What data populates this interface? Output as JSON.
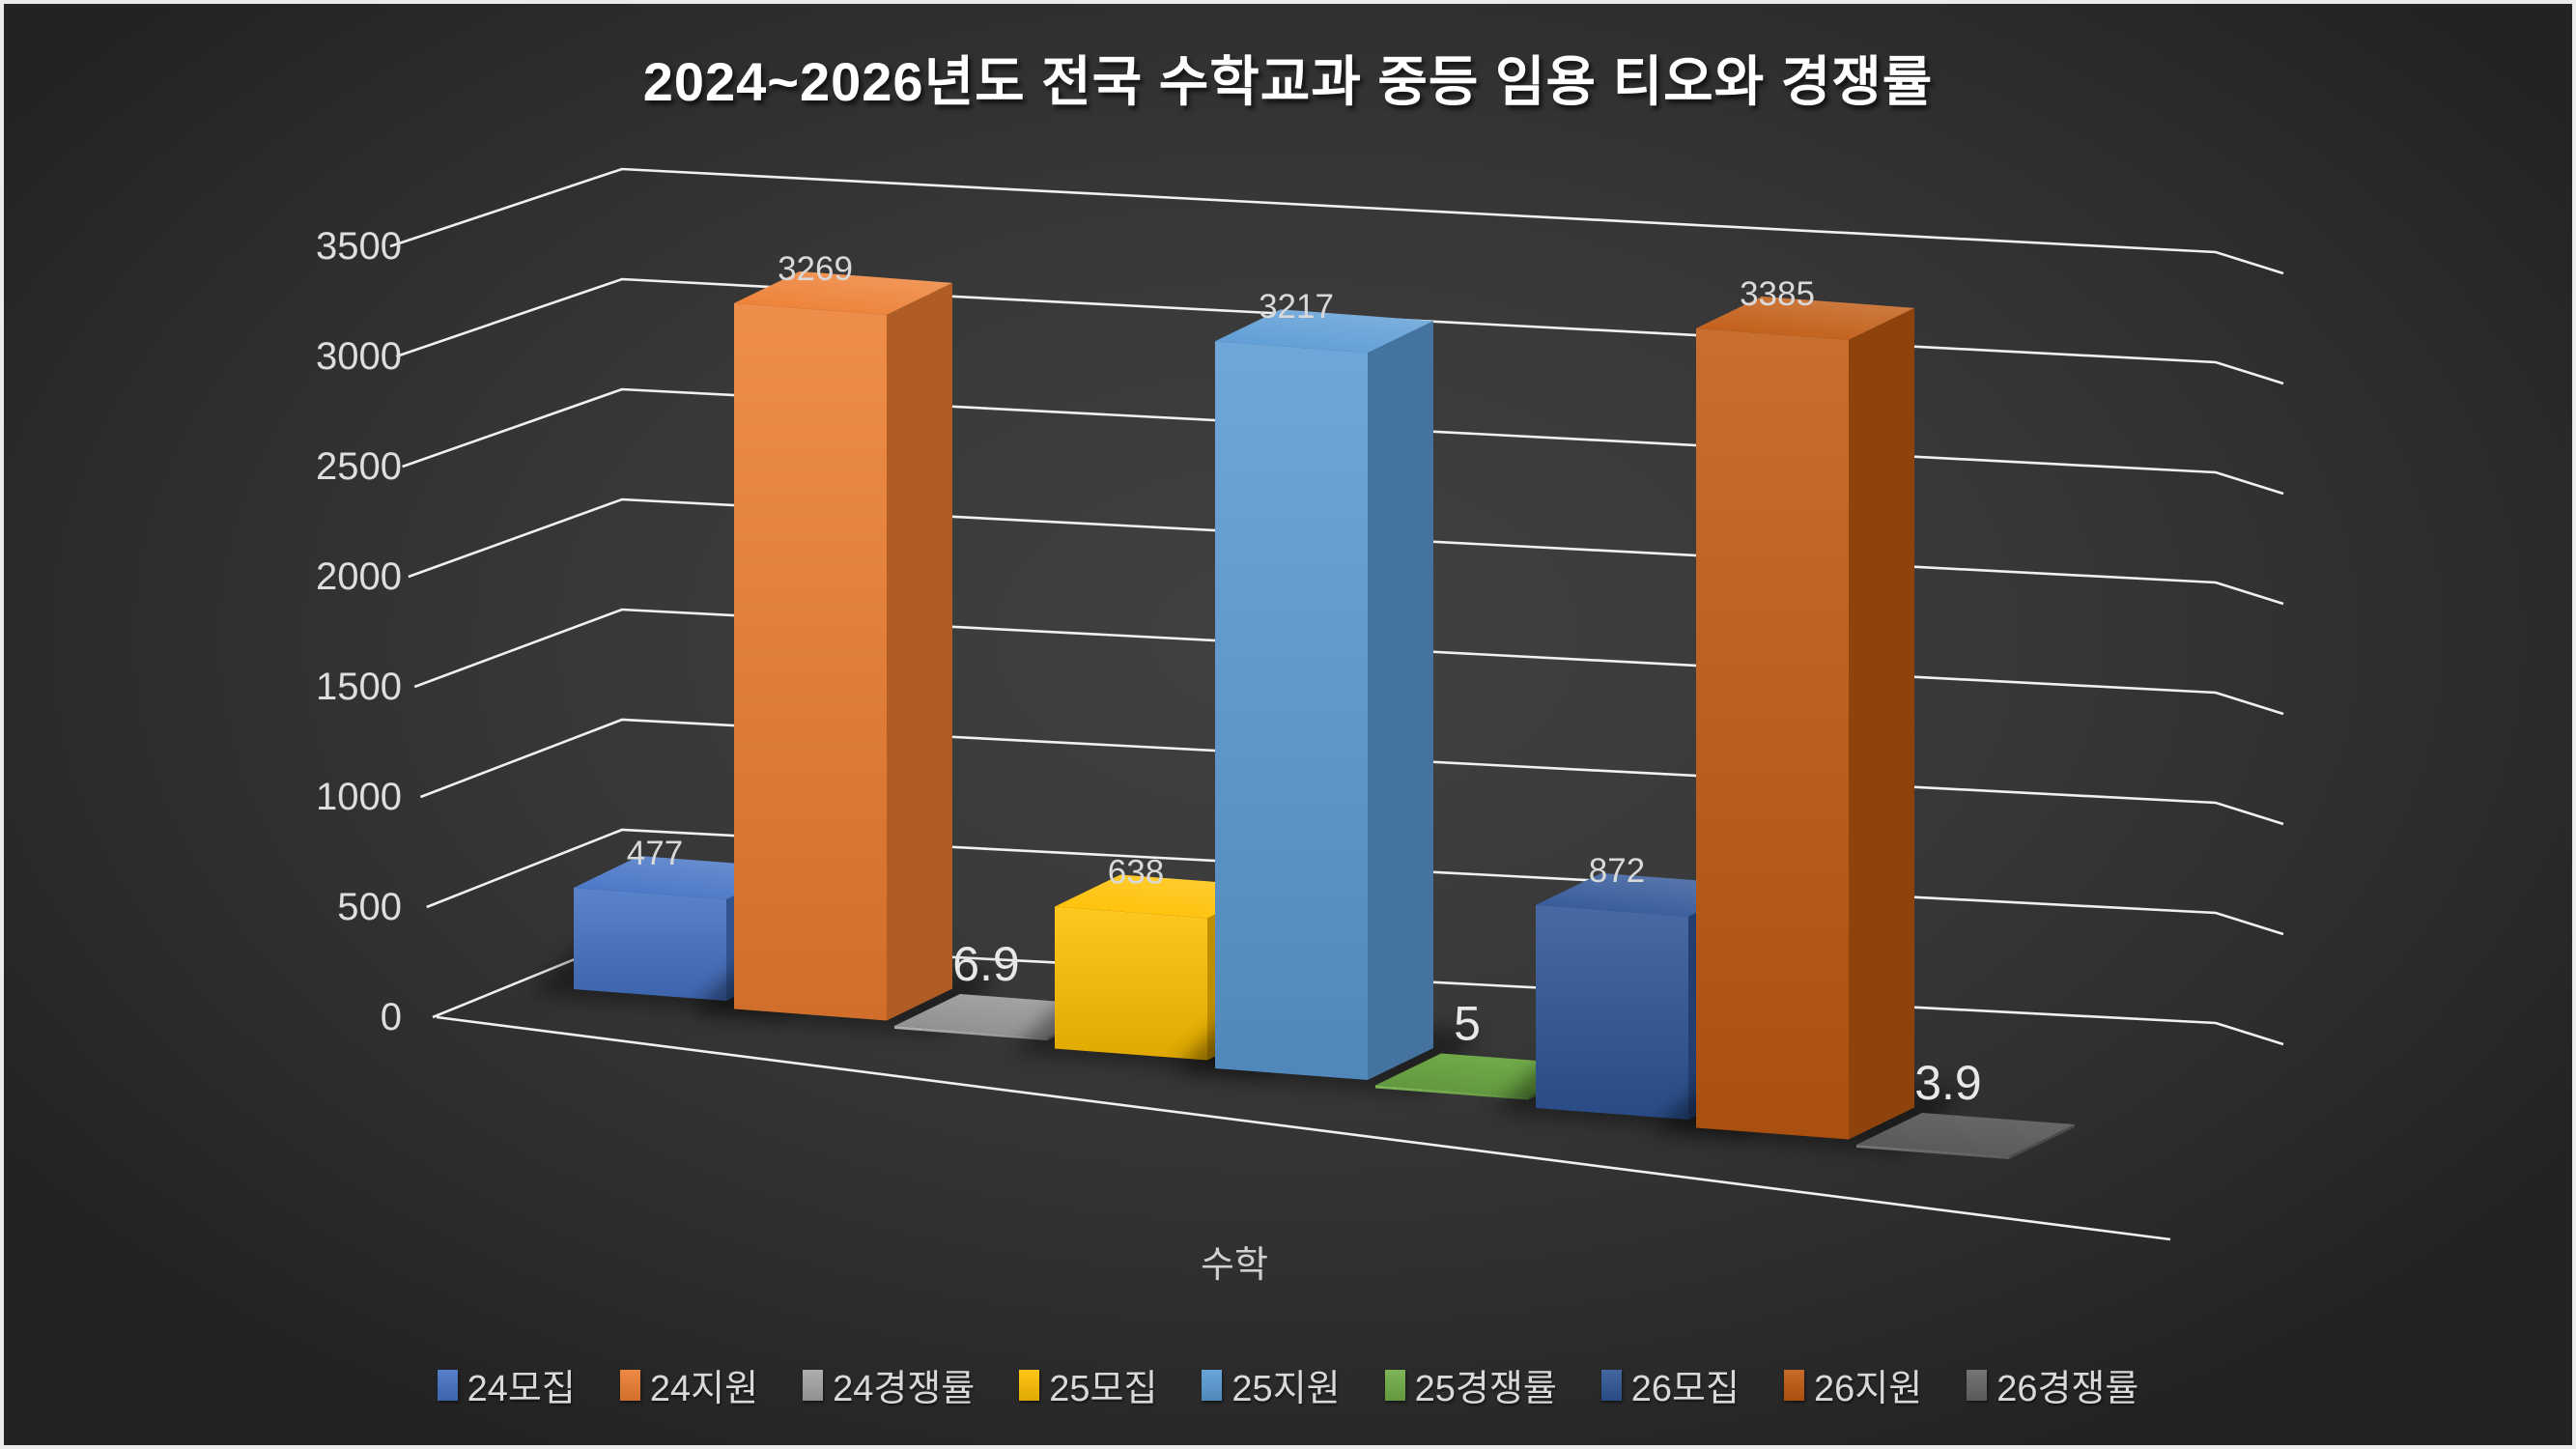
{
  "title": "2024~2026년도 전국 수학교과 중등 임용 티오와 경쟁률",
  "chart_data": {
    "type": "bar",
    "style": "3d-column",
    "title": "2024~2026년도 전국 수학교과 중등 임용 티오와 경쟁률",
    "categories": [
      "수학"
    ],
    "xlabel": "수학",
    "ylabel": "",
    "ylim": [
      0,
      3500
    ],
    "yticks": [
      0,
      500,
      1000,
      1500,
      2000,
      2500,
      3000,
      3500
    ],
    "grid": true,
    "legend_position": "bottom",
    "series": [
      {
        "name": "24모집",
        "values": [
          477
        ],
        "label": "477",
        "color": "#4472C4"
      },
      {
        "name": "24지원",
        "values": [
          3269
        ],
        "label": "3269",
        "color": "#ED7D31"
      },
      {
        "name": "24경쟁률",
        "values": [
          6.9
        ],
        "label": "6.9",
        "color": "#A5A5A5"
      },
      {
        "name": "25모집",
        "values": [
          638
        ],
        "label": "638",
        "color": "#FFC000"
      },
      {
        "name": "25지원",
        "values": [
          3217
        ],
        "label": "3217",
        "color": "#5B9BD5"
      },
      {
        "name": "25경쟁률",
        "values": [
          5
        ],
        "label": "5",
        "color": "#70AD47"
      },
      {
        "name": "26모집",
        "values": [
          872
        ],
        "label": "872",
        "color": "#2F5597"
      },
      {
        "name": "26지원",
        "values": [
          3385
        ],
        "label": "3385",
        "color": "#C05A11"
      },
      {
        "name": "26경쟁률",
        "values": [
          3.9
        ],
        "label": "3.9",
        "color": "#666666"
      }
    ]
  },
  "colors": {
    "background": "#383838",
    "frame": "#ebebeb",
    "gridline": "#ffffff",
    "tick_text": "#dedede",
    "value_text": "#d9d9d9",
    "rate_text": "#e8e8e8",
    "category_text": "#d0d0d0",
    "legend_text": "#d9d9d9",
    "title_text": "#ffffff"
  }
}
